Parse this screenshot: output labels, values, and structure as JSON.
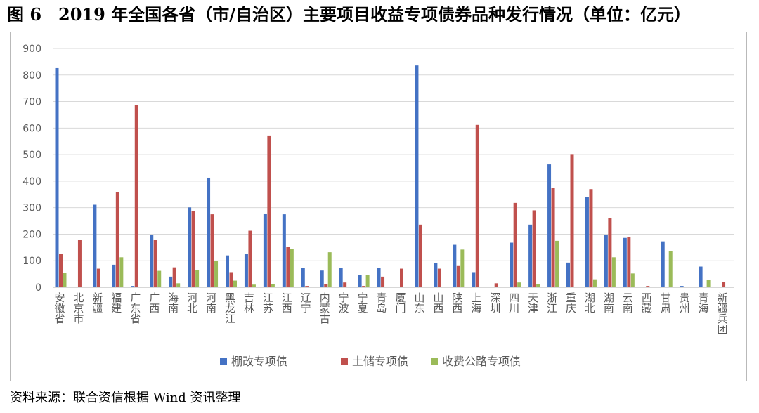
{
  "figure": {
    "title": "图 6　2019 年全国各省（市/自治区）主要项目收益专项债券品种发行情况（单位：亿元）",
    "source": "资料来源：联合资信根据 Wind 资讯整理"
  },
  "colors": {
    "series": [
      "#4472c4",
      "#c0504d",
      "#9bbb59"
    ],
    "grid": "#d9d9d9",
    "axis": "#bfbfbf",
    "tick_text": "#595959"
  },
  "chart_data": {
    "type": "bar",
    "title": "",
    "xlabel": "",
    "ylabel": "",
    "ylim": [
      0,
      900
    ],
    "yticks": [
      0,
      100,
      200,
      300,
      400,
      500,
      600,
      700,
      800,
      900
    ],
    "grid": true,
    "legend_position": "bottom",
    "categories": [
      "安徽省",
      "北京市",
      "新疆",
      "福建",
      "广东省",
      "广西",
      "海南",
      "河北",
      "河南",
      "黑龙江",
      "吉林",
      "江苏",
      "江西",
      "辽宁",
      "内蒙古",
      "宁波",
      "宁夏",
      "青岛",
      "厦门",
      "山东",
      "山西",
      "陕西",
      "上海",
      "深圳",
      "四川",
      "天津",
      "浙江",
      "重庆",
      "湖北",
      "湖南",
      "云南",
      "西藏",
      "甘肃",
      "贵州",
      "青海",
      "新疆兵团"
    ],
    "series": [
      {
        "name": "棚改专项债",
        "values": [
          826,
          0,
          311,
          85,
          5,
          198,
          40,
          301,
          413,
          120,
          127,
          278,
          275,
          72,
          63,
          72,
          45,
          72,
          0,
          836,
          90,
          160,
          57,
          0,
          168,
          236,
          463,
          93,
          340,
          198,
          186,
          0,
          173,
          5,
          78,
          0
        ]
      },
      {
        "name": "土储专项债",
        "values": [
          125,
          180,
          70,
          360,
          687,
          180,
          75,
          287,
          275,
          57,
          213,
          572,
          152,
          5,
          12,
          18,
          5,
          40,
          70,
          236,
          70,
          80,
          612,
          15,
          318,
          290,
          375,
          502,
          370,
          260,
          190,
          5,
          0,
          0,
          0,
          20
        ]
      },
      {
        "name": "收费公路专项债",
        "values": [
          55,
          0,
          0,
          113,
          0,
          62,
          15,
          65,
          98,
          25,
          10,
          12,
          145,
          0,
          132,
          0,
          45,
          0,
          0,
          0,
          0,
          142,
          0,
          0,
          18,
          12,
          175,
          0,
          30,
          113,
          52,
          0,
          137,
          0,
          27,
          0
        ]
      }
    ]
  }
}
